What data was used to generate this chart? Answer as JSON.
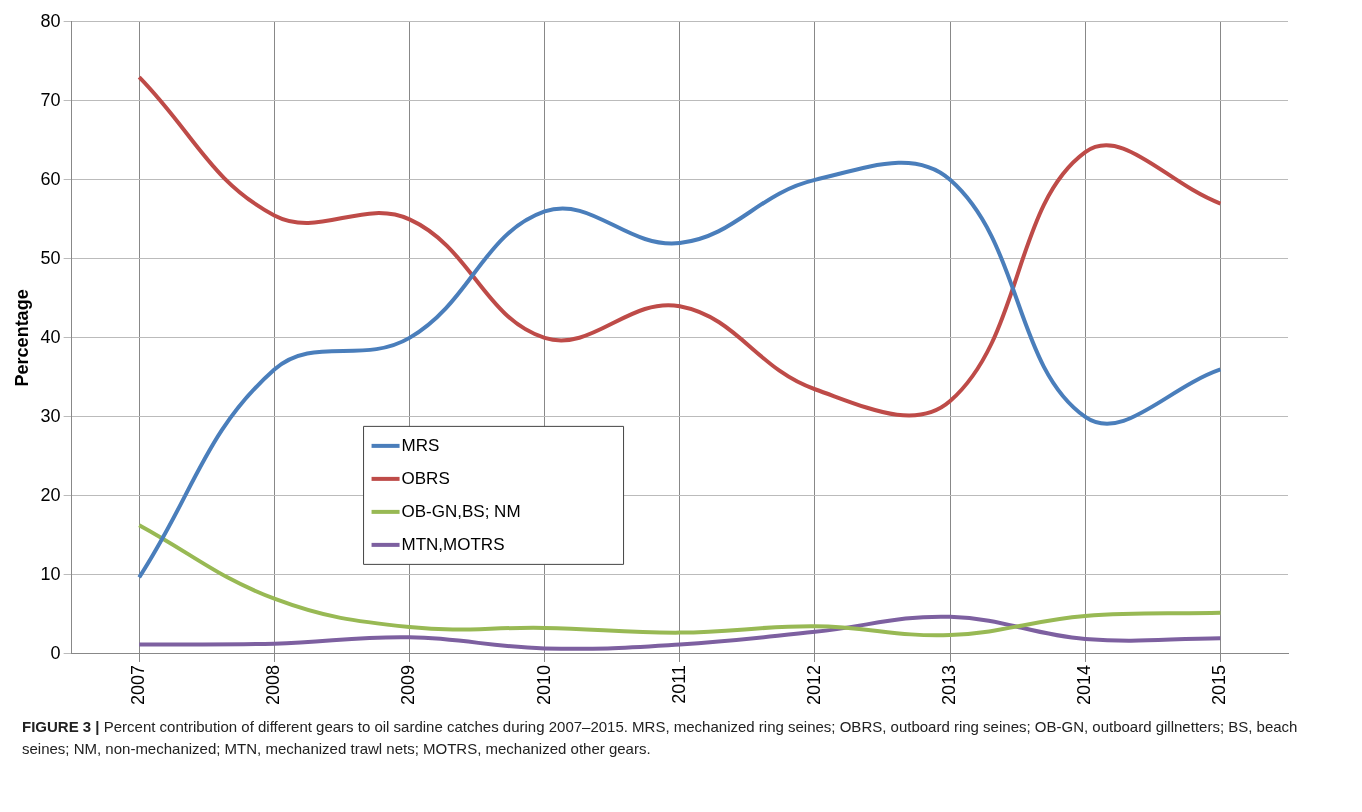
{
  "chart_data": {
    "type": "line",
    "ylabel": "Percentage",
    "categories": [
      "2007",
      "2008",
      "2009",
      "2010",
      "2011",
      "2012",
      "2013",
      "2014",
      "2015"
    ],
    "series": [
      {
        "name": "MRS",
        "color": "#4a7ebb",
        "values": [
          9.7,
          36,
          40,
          56,
          52,
          60,
          60,
          30,
          36
        ]
      },
      {
        "name": "OBRS",
        "color": "#be4b48",
        "values": [
          73,
          55.5,
          55,
          40,
          44,
          33.5,
          32,
          63.5,
          57
        ]
      },
      {
        "name": "OB-GN,BS; NM",
        "color": "#98b954",
        "values": [
          16.3,
          7,
          3.4,
          3.3,
          2.7,
          3.5,
          2.4,
          4.8,
          5.2
        ]
      },
      {
        "name": "MTN,MOTRS",
        "color": "#7d60a0",
        "values": [
          1.2,
          1.3,
          2.1,
          0.7,
          1.2,
          2.8,
          4.7,
          1.9,
          2
        ]
      }
    ],
    "ylim": [
      0,
      80
    ],
    "yticks": [
      0,
      10,
      20,
      30,
      40,
      50,
      60,
      70,
      80
    ],
    "grid": true,
    "legend": "bottom",
    "marker": "none",
    "line_style": "solid",
    "annotations": [
      "FIGURE 3 | Percent contribution of different gears to oil sardine catches during 2007–2015. MRS, mechanized ring seines; OBRS, outboard ring seines; OB-GN, outboard gillnetters; BS, beach seines; NM, non-mechanized; MTN, mechanized trawl nets; MOTRS, mechanized other gears."
    ]
  }
}
